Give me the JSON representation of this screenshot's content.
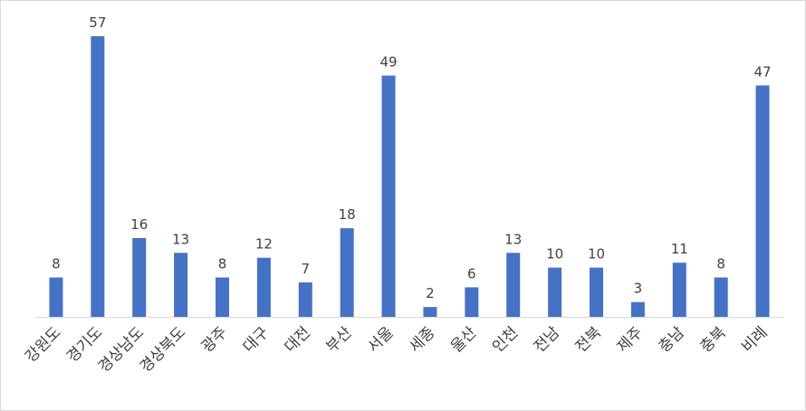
{
  "chart_data": {
    "type": "bar",
    "categories": [
      "강원도",
      "경기도",
      "경상남도",
      "경상북도",
      "광주",
      "대구",
      "대전",
      "부산",
      "서울",
      "세종",
      "울산",
      "인천",
      "전남",
      "전북",
      "제주",
      "충남",
      "충북",
      "비례"
    ],
    "values": [
      8,
      57,
      16,
      13,
      8,
      12,
      7,
      18,
      49,
      2,
      6,
      13,
      10,
      10,
      3,
      11,
      8,
      47
    ],
    "color": "#4472c4"
  }
}
